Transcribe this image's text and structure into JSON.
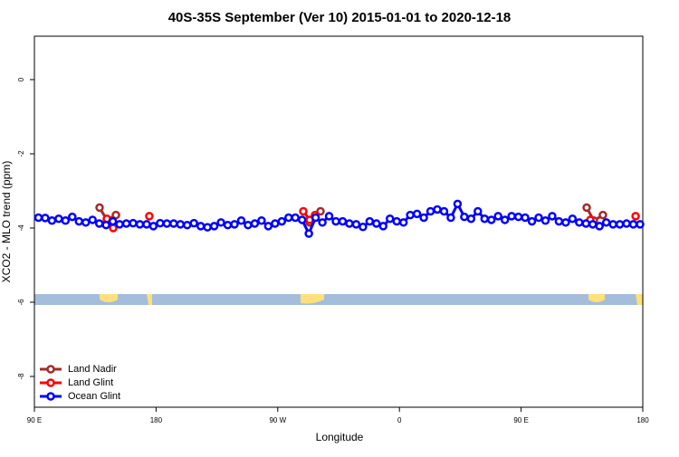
{
  "chart_data": {
    "type": "line",
    "title": "40S-35S September (Ver 10)   2015-01-01 to 2020-12-18",
    "x_label": "Longitude",
    "y_label": "XCO2 - MLO trend (ppm)",
    "xlim": [
      90,
      540
    ],
    "ylim": [
      -8.83,
      1.17
    ],
    "xticks": [
      {
        "value": 90,
        "label": "90 E"
      },
      180,
      {
        "value": 270,
        "label": "90 W"
      },
      {
        "value": 360,
        "label": "0"
      },
      {
        "value": 450,
        "label": "90 E"
      },
      {
        "value": 540,
        "label": "180"
      }
    ],
    "yticks": [
      0,
      -2,
      -4,
      -6,
      -8
    ],
    "legend": "bottom-left",
    "series": [
      {
        "name": "Land Nadir",
        "color": "#a52a2a",
        "x": [
          138.2,
          143.6,
          150.3,
          220,
          293.6,
          301.6,
          400,
          498.5,
          503.8,
          510.5
        ],
        "values": [
          -3.45,
          -3.78,
          -3.65,
          null,
          -3.85,
          -3.55,
          null,
          -3.45,
          -3.8,
          -3.65
        ]
      },
      {
        "name": "Land Glint",
        "color": "#ff0000",
        "x": [
          143.6,
          148.3,
          160,
          175,
          230,
          288.9,
          293.6,
          297.6,
          400,
          501.2,
          507.9,
          520,
          534.7
        ],
        "values": [
          -3.75,
          -4.0,
          null,
          -3.68,
          null,
          -3.55,
          -3.78,
          -3.65,
          null,
          -3.78,
          -3.95,
          null,
          -3.68
        ]
      },
      {
        "name": "Ocean Glint",
        "color": "#0000ff",
        "x": [
          93,
          98,
          103,
          108,
          113,
          118,
          123,
          128,
          133,
          138,
          143,
          148,
          153,
          158,
          163,
          168,
          173,
          178,
          183,
          188,
          193,
          198,
          203,
          208,
          213,
          218,
          223,
          228,
          233,
          238,
          243,
          248,
          253,
          258,
          263,
          268,
          273,
          278,
          283,
          288,
          293,
          298,
          303,
          308,
          313,
          318,
          323,
          328,
          333,
          338,
          343,
          348,
          353,
          358,
          363,
          368,
          373,
          378,
          383,
          388,
          393,
          398,
          403,
          408,
          413,
          418,
          423,
          428,
          433,
          438,
          443,
          448,
          453,
          458,
          463,
          468,
          473,
          478,
          483,
          488,
          493,
          498,
          503,
          508,
          513,
          518,
          523,
          528,
          533,
          538
        ],
        "values": [
          -3.72,
          -3.73,
          -3.8,
          -3.75,
          -3.8,
          -3.7,
          -3.82,
          -3.85,
          -3.78,
          -3.88,
          -3.92,
          -3.82,
          -3.9,
          -3.88,
          -3.87,
          -3.9,
          -3.9,
          -3.95,
          -3.87,
          -3.88,
          -3.88,
          -3.9,
          -3.92,
          -3.87,
          -3.95,
          -3.98,
          -3.95,
          -3.85,
          -3.92,
          -3.9,
          -3.8,
          -3.92,
          -3.88,
          -3.8,
          -3.95,
          -3.88,
          -3.82,
          -3.72,
          -3.72,
          -3.78,
          -4.15,
          -3.72,
          -3.85,
          -3.68,
          -3.82,
          -3.82,
          -3.88,
          -3.9,
          -3.97,
          -3.82,
          -3.88,
          -3.95,
          -3.75,
          -3.82,
          -3.85,
          -3.65,
          -3.62,
          -3.72,
          -3.55,
          -3.5,
          -3.55,
          -3.72,
          -3.35,
          -3.7,
          -3.75,
          -3.55,
          -3.75,
          -3.78,
          -3.68,
          -3.78,
          -3.68,
          -3.7,
          -3.72,
          -3.82,
          -3.72,
          -3.8,
          -3.68,
          -3.82,
          -3.85,
          -3.75,
          -3.85,
          -3.88,
          -3.9,
          -3.95,
          -3.85,
          -3.9,
          -3.9,
          -3.88,
          -3.9,
          -3.9
        ]
      }
    ]
  }
}
